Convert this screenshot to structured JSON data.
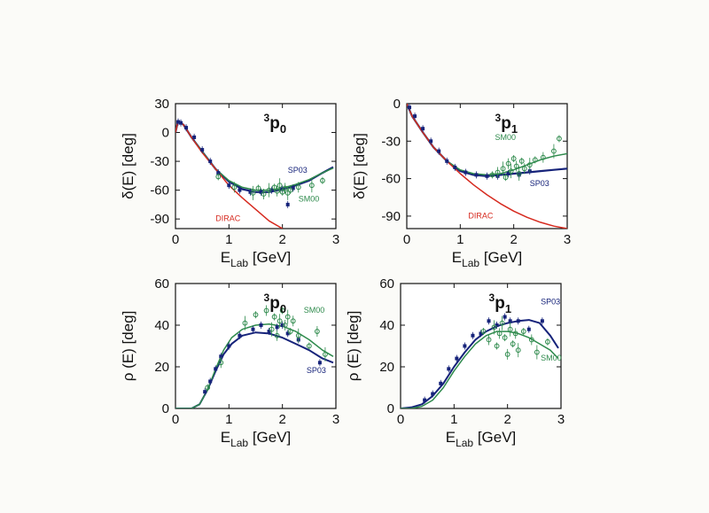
{
  "colors": {
    "SP03": "#16237a",
    "SM00": "#2e8a4c",
    "DIRAC": "#d62a1f",
    "axis": "#111111",
    "background": "#fbfbf8"
  },
  "chart_data": [
    {
      "type": "line",
      "id": "tl",
      "panel": "top-left",
      "wave": {
        "sup": "3",
        "main": "p",
        "sub": "0"
      },
      "ylabel": {
        "main": "δ(E) [deg]"
      },
      "xlabel": {
        "main": "E",
        "sub": "Lab",
        "unit": " [GeV]"
      },
      "xlim": [
        0,
        3
      ],
      "ylim": [
        -100,
        30
      ],
      "xticks": [
        "0",
        "1",
        "2",
        "3"
      ],
      "yticks": [
        "30",
        "0",
        "-30",
        "-60",
        "-90"
      ],
      "ytick_values": [
        30,
        0,
        -30,
        -60,
        -90
      ],
      "series": [
        {
          "name": "SP03",
          "label": "SP03",
          "color_key": "SP03",
          "width": 2.2,
          "x": [
            0,
            0.05,
            0.15,
            0.3,
            0.5,
            0.75,
            1.0,
            1.25,
            1.5,
            1.75,
            2.0,
            2.25,
            2.5,
            2.75,
            2.95
          ],
          "y": [
            0,
            12,
            8,
            -5,
            -20,
            -38,
            -51,
            -59,
            -62,
            -62,
            -59,
            -55,
            -50,
            -42,
            -36
          ]
        },
        {
          "name": "SM00",
          "label": "SM00",
          "color_key": "SM00",
          "width": 1.5,
          "x": [
            0,
            0.05,
            0.15,
            0.3,
            0.5,
            0.75,
            1.0,
            1.25,
            1.5,
            1.75,
            2.0,
            2.25,
            2.5,
            2.75,
            2.95
          ],
          "y": [
            0,
            12,
            8,
            -5,
            -20,
            -38,
            -50,
            -57,
            -60,
            -60,
            -58,
            -54,
            -49,
            -42,
            -37
          ]
        },
        {
          "name": "DIRAC",
          "label": "DIRAC",
          "color_key": "DIRAC",
          "width": 1.5,
          "x": [
            0,
            0.05,
            0.15,
            0.3,
            0.5,
            0.75,
            1.0,
            1.25,
            1.5,
            1.75,
            2.0
          ],
          "y": [
            0,
            12,
            8,
            -5,
            -21,
            -38,
            -55,
            -68,
            -80,
            -92,
            -100
          ]
        }
      ],
      "points_sp03": {
        "x": [
          0.05,
          0.1,
          0.2,
          0.35,
          0.5,
          0.65,
          0.8,
          1.0,
          1.2,
          1.4,
          1.6,
          1.8,
          2.0,
          2.1,
          2.2
        ],
        "y": [
          11,
          10,
          5,
          -5,
          -18,
          -30,
          -42,
          -55,
          -60,
          -62,
          -62,
          -60,
          -59,
          -75,
          -58
        ]
      },
      "points_sm00": {
        "x": [
          0.8,
          1.1,
          1.45,
          1.55,
          1.65,
          1.75,
          1.85,
          1.9,
          1.95,
          2.0,
          2.05,
          2.1,
          2.15,
          2.3,
          2.55,
          2.75
        ],
        "y": [
          -46,
          -57,
          -63,
          -58,
          -64,
          -60,
          -57,
          -61,
          -55,
          -62,
          -58,
          -63,
          -60,
          -57,
          -55,
          -50
        ]
      },
      "labels": [
        {
          "key": "SP03",
          "text": "SP03",
          "x": 2.1,
          "y": -42
        },
        {
          "key": "SM00",
          "text": "SM00",
          "x": 2.3,
          "y": -72
        },
        {
          "key": "DIRAC",
          "text": "DIRAC",
          "x": 0.75,
          "y": -92
        }
      ]
    },
    {
      "type": "line",
      "id": "tr",
      "panel": "top-right",
      "wave": {
        "sup": "3",
        "main": "p",
        "sub": "1"
      },
      "ylabel": {
        "main": "δ(E) [deg]"
      },
      "xlabel": {
        "main": "E",
        "sub": "Lab",
        "unit": " [GeV]"
      },
      "xlim": [
        0,
        3
      ],
      "ylim": [
        -100,
        0
      ],
      "xticks": [
        "0",
        "1",
        "2",
        "3"
      ],
      "yticks": [
        "0",
        "-30",
        "-60",
        "-90"
      ],
      "ytick_values": [
        0,
        -30,
        -60,
        -90
      ],
      "series": [
        {
          "name": "SP03",
          "label": "SP03",
          "color_key": "SP03",
          "width": 2.2,
          "x": [
            0,
            0.1,
            0.3,
            0.5,
            0.75,
            1.0,
            1.25,
            1.5,
            1.75,
            2.0,
            2.25,
            2.5,
            2.75,
            3.0
          ],
          "y": [
            0,
            -10,
            -23,
            -35,
            -46,
            -54,
            -57,
            -58,
            -57,
            -56,
            -55,
            -54,
            -53,
            -52
          ]
        },
        {
          "name": "SM00",
          "label": "SM00",
          "color_key": "SM00",
          "width": 1.5,
          "x": [
            0,
            0.1,
            0.3,
            0.5,
            0.75,
            1.0,
            1.25,
            1.5,
            1.75,
            2.0,
            2.25,
            2.5,
            2.75,
            3.0
          ],
          "y": [
            0,
            -10,
            -23,
            -35,
            -46,
            -53,
            -56,
            -57,
            -56,
            -53,
            -49,
            -45,
            -42,
            -40
          ]
        },
        {
          "name": "DIRAC",
          "label": "DIRAC",
          "color_key": "DIRAC",
          "width": 1.5,
          "x": [
            0,
            0.1,
            0.3,
            0.5,
            0.75,
            1.0,
            1.25,
            1.5,
            1.75,
            2.0,
            2.25,
            2.5,
            2.75,
            3.0
          ],
          "y": [
            0,
            -10,
            -23,
            -35,
            -46,
            -56,
            -65,
            -73,
            -80,
            -86,
            -91,
            -95,
            -98,
            -100
          ]
        }
      ],
      "points_sp03": {
        "x": [
          0.05,
          0.15,
          0.3,
          0.45,
          0.6,
          0.75,
          0.9,
          1.1,
          1.3,
          1.5,
          1.7,
          1.9,
          2.1,
          2.3
        ],
        "y": [
          -3,
          -10,
          -20,
          -30,
          -38,
          -46,
          -51,
          -55,
          -57,
          -58,
          -58,
          -56,
          -57,
          -54
        ]
      },
      "points_sm00": {
        "x": [
          1.6,
          1.7,
          1.8,
          1.85,
          1.9,
          1.95,
          2.0,
          2.05,
          2.1,
          2.15,
          2.2,
          2.3,
          2.4,
          2.55,
          2.75,
          2.85
        ],
        "y": [
          -57,
          -55,
          -52,
          -59,
          -48,
          -54,
          -44,
          -50,
          -56,
          -46,
          -52,
          -49,
          -45,
          -43,
          -38,
          -28
        ]
      },
      "labels": [
        {
          "key": "SM00",
          "text": "SM00",
          "x": 1.65,
          "y": -29
        },
        {
          "key": "SP03",
          "text": "SP03",
          "x": 2.3,
          "y": -66
        },
        {
          "key": "DIRAC",
          "text": "DIRAC",
          "x": 1.15,
          "y": -92
        }
      ]
    },
    {
      "type": "line",
      "id": "bl",
      "panel": "bottom-left",
      "wave": {
        "sup": "3",
        "main": "p",
        "sub": "0"
      },
      "ylabel": {
        "main": "ρ (E) [deg]"
      },
      "xlabel": {
        "main": "E",
        "sub": "Lab",
        "unit": " [GeV]"
      },
      "xlim": [
        0,
        3
      ],
      "ylim": [
        0,
        60
      ],
      "xticks": [
        "0",
        "1",
        "2",
        "3"
      ],
      "yticks": [
        "60",
        "40",
        "20",
        "0"
      ],
      "ytick_values": [
        60,
        40,
        20,
        0
      ],
      "series": [
        {
          "name": "SP03",
          "label": "SP03",
          "color_key": "SP03",
          "width": 2.0,
          "x": [
            0,
            0.3,
            0.45,
            0.6,
            0.75,
            0.9,
            1.05,
            1.25,
            1.5,
            1.75,
            2.0,
            2.25,
            2.5,
            2.75,
            2.95
          ],
          "y": [
            0,
            0,
            2,
            9,
            18,
            26,
            31,
            35,
            36.5,
            36,
            34,
            31,
            28,
            24,
            22
          ]
        },
        {
          "name": "SM00",
          "label": "SM00",
          "color_key": "SM00",
          "width": 1.5,
          "x": [
            0,
            0.3,
            0.45,
            0.6,
            0.75,
            0.9,
            1.05,
            1.25,
            1.5,
            1.75,
            2.0,
            2.25,
            2.5,
            2.75,
            2.95
          ],
          "y": [
            0,
            0,
            2,
            9,
            19,
            28,
            34,
            38,
            40,
            40.5,
            39.5,
            37,
            33,
            28,
            25
          ]
        }
      ],
      "points_sp03": {
        "x": [
          0.55,
          0.65,
          0.75,
          0.85,
          1.0,
          1.2,
          1.45,
          1.6,
          1.75,
          1.9,
          2.0,
          2.1,
          2.3,
          2.7
        ],
        "y": [
          8,
          13,
          19,
          25,
          30,
          35,
          38,
          40,
          37,
          39,
          40,
          36,
          33,
          22
        ]
      },
      "points_sm00": {
        "x": [
          0.6,
          0.85,
          1.3,
          1.5,
          1.7,
          1.8,
          1.85,
          1.9,
          1.95,
          2.0,
          2.05,
          2.1,
          2.15,
          2.2,
          2.3,
          2.5,
          2.65,
          2.8
        ],
        "y": [
          10,
          22,
          41,
          45,
          47,
          38,
          44,
          35,
          42,
          47,
          40,
          44,
          37,
          42,
          35,
          30,
          37,
          26
        ]
      },
      "labels": [
        {
          "key": "SM00",
          "text": "SM00",
          "x": 2.4,
          "y": 46
        },
        {
          "key": "SP03",
          "text": "SP03",
          "x": 2.45,
          "y": 17
        }
      ]
    },
    {
      "type": "line",
      "id": "br",
      "panel": "bottom-right",
      "wave": {
        "sup": "3",
        "main": "p",
        "sub": "1"
      },
      "ylabel": {
        "main": "ρ (E) [deg]"
      },
      "xlabel": {
        "main": "E",
        "sub": "Lab",
        "unit": " [GeV]"
      },
      "xlim": [
        0,
        3
      ],
      "ylim": [
        0,
        60
      ],
      "xticks": [
        "0",
        "1",
        "2",
        "3"
      ],
      "yticks": [
        "60",
        "40",
        "20",
        "0"
      ],
      "ytick_values": [
        60,
        40,
        20,
        0
      ],
      "series": [
        {
          "name": "SP03",
          "label": "SP03",
          "color_key": "SP03",
          "width": 2.0,
          "x": [
            0,
            0.2,
            0.4,
            0.6,
            0.8,
            1.0,
            1.2,
            1.4,
            1.6,
            1.8,
            2.0,
            2.2,
            2.4,
            2.6,
            2.8,
            2.95
          ],
          "y": [
            0,
            0.5,
            2,
            6,
            12,
            20,
            27,
            33,
            37,
            39.5,
            41,
            42,
            42.5,
            41,
            35,
            29
          ]
        },
        {
          "name": "SM00",
          "label": "SM00",
          "color_key": "SM00",
          "width": 1.5,
          "x": [
            0,
            0.2,
            0.4,
            0.6,
            0.8,
            1.0,
            1.2,
            1.4,
            1.6,
            1.8,
            2.0,
            2.2,
            2.4,
            2.6,
            2.8,
            2.95
          ],
          "y": [
            0,
            0,
            1,
            4,
            10,
            18,
            25,
            31,
            35,
            37,
            37,
            36,
            34,
            31,
            28,
            24
          ]
        }
      ],
      "points_sp03": {
        "x": [
          0.45,
          0.6,
          0.75,
          0.9,
          1.05,
          1.2,
          1.35,
          1.5,
          1.65,
          1.8,
          1.95,
          2.05,
          2.2,
          2.4,
          2.65
        ],
        "y": [
          4,
          7,
          12,
          19,
          24,
          30,
          35,
          36,
          42,
          40,
          44,
          42,
          42,
          38,
          42
        ]
      },
      "points_sm00": {
        "x": [
          1.55,
          1.65,
          1.75,
          1.8,
          1.85,
          1.9,
          1.95,
          2.0,
          2.05,
          2.1,
          2.15,
          2.2,
          2.3,
          2.45,
          2.55,
          2.75
        ],
        "y": [
          37,
          33,
          39,
          30,
          36,
          41,
          34,
          26,
          38,
          31,
          36,
          28,
          37,
          33,
          27,
          32
        ]
      },
      "labels": [
        {
          "key": "SP03",
          "text": "SP03",
          "x": 2.62,
          "y": 50
        },
        {
          "key": "SM00",
          "text": "SM00",
          "x": 2.62,
          "y": 23
        }
      ]
    }
  ]
}
